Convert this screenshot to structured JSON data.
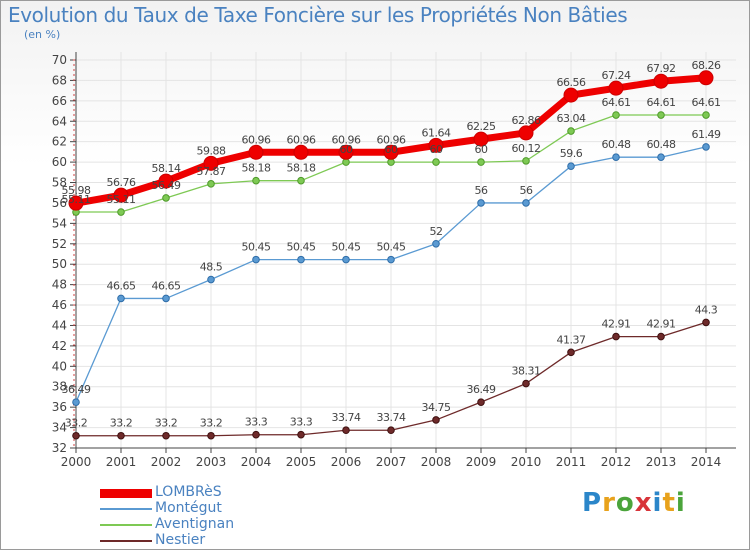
{
  "title": "Evolution du Taux de Taxe Foncière sur les Propriétés Non Bâties",
  "subtitle": "(en %)",
  "logo": {
    "letters": [
      "P",
      "r",
      "o",
      "x",
      "i",
      "t",
      "i"
    ],
    "colors": [
      "#2b86c9",
      "#e8a21c",
      "#4ba43b",
      "#d8343a",
      "#2b86c9",
      "#e8a21c",
      "#4ba43b"
    ]
  },
  "colors": {
    "LOMBRèS": "#ee0000",
    "Montégut": "#5a9ad2",
    "Aventignan": "#7ec954",
    "Nestier": "#6e2a2a",
    "axis": "#444444",
    "grid": "#e4e4e4",
    "label": "#444444"
  },
  "chart_data": {
    "type": "line",
    "title": "Evolution du Taux de Taxe Foncière sur les Propriétés Non Bâties",
    "subtitle": "(en %)",
    "xlabel": "",
    "ylabel": "",
    "ylim": [
      32,
      70
    ],
    "ytick_step": 2,
    "grid": true,
    "legend": "bottom-left",
    "x": [
      2000,
      2001,
      2002,
      2003,
      2004,
      2005,
      2006,
      2007,
      2008,
      2009,
      2010,
      2011,
      2012,
      2013,
      2014
    ],
    "series": [
      {
        "name": "LOMBRèS",
        "values": [
          55.98,
          56.76,
          58.14,
          59.88,
          60.96,
          60.96,
          60.96,
          60.96,
          61.64,
          62.25,
          62.86,
          66.56,
          67.24,
          67.92,
          68.26
        ],
        "labels": [
          "55.98",
          "56.76",
          "58.14",
          "59.88",
          "60.96",
          "60.96",
          "60.96",
          "60.96",
          "61.64",
          "62.25",
          "62.86",
          "66.56",
          "67.24",
          "67.92",
          "68.26"
        ]
      },
      {
        "name": "Montégut",
        "values": [
          36.49,
          46.65,
          46.65,
          48.5,
          50.45,
          50.45,
          50.45,
          50.45,
          52,
          56,
          56,
          59.6,
          60.48,
          60.48,
          61.49
        ],
        "labels": [
          "36.49",
          "46.65",
          "46.65",
          "48.5",
          "50.45",
          "50.45",
          "50.45",
          "50.45",
          "52",
          "56",
          "56",
          "59.6",
          "60.48",
          "60.48",
          "61.49"
        ]
      },
      {
        "name": "Aventignan",
        "values": [
          55.11,
          55.11,
          56.49,
          57.87,
          58.18,
          58.18,
          60,
          60,
          60,
          60,
          60.12,
          63.04,
          64.61,
          64.61,
          64.61
        ],
        "labels": [
          "55.11",
          "55.11",
          "56.49",
          "57.87",
          "58.18",
          "58.18",
          "60",
          "60",
          "60",
          "60",
          "60.12",
          "63.04",
          "64.61",
          "64.61",
          "64.61"
        ]
      },
      {
        "name": "Nestier",
        "values": [
          33.2,
          33.2,
          33.2,
          33.2,
          33.3,
          33.3,
          33.74,
          33.74,
          34.75,
          36.49,
          38.31,
          41.37,
          42.91,
          42.91,
          44.3
        ],
        "labels": [
          "33.2",
          "33.2",
          "33.2",
          "33.2",
          "33.3",
          "33.3",
          "33.74",
          "33.74",
          "34.75",
          "36.49",
          "38.31",
          "41.37",
          "42.91",
          "42.91",
          "44.3"
        ]
      }
    ]
  }
}
